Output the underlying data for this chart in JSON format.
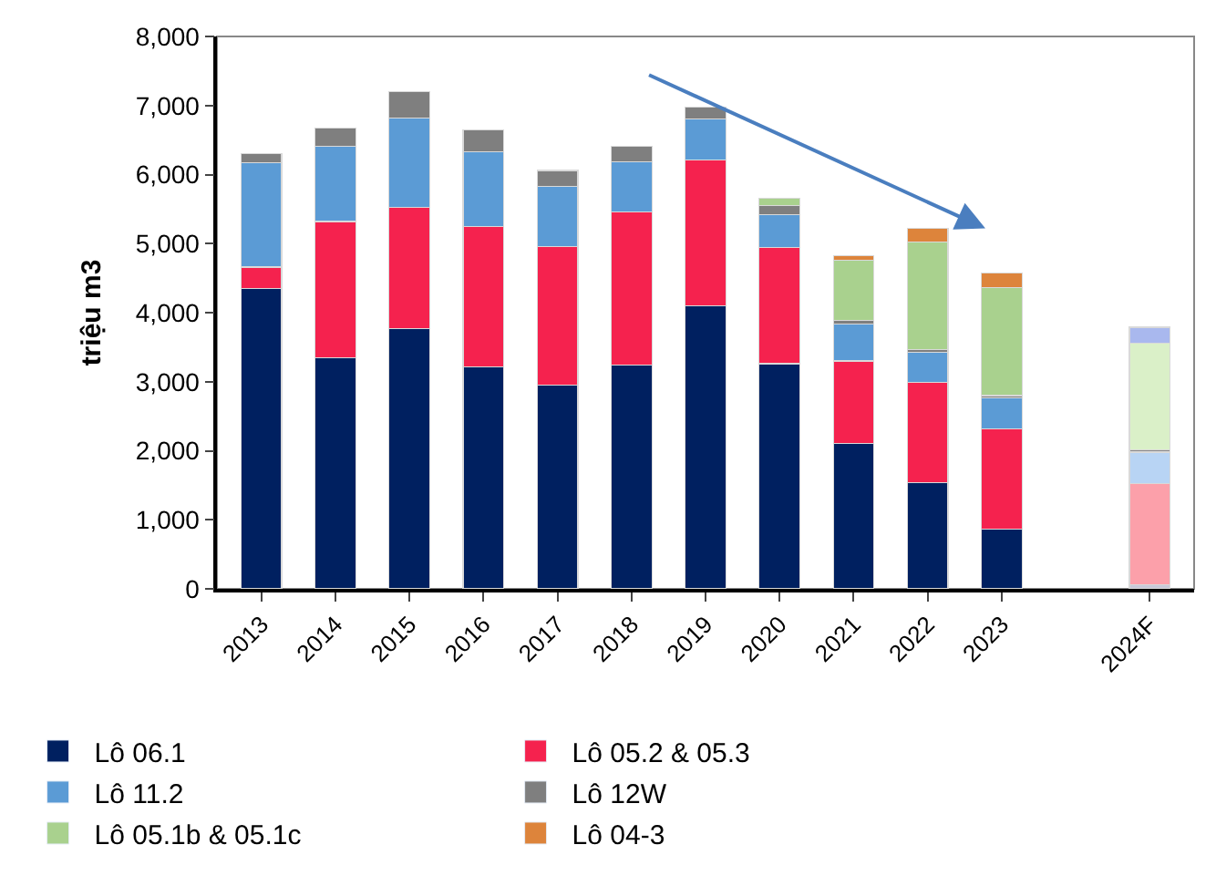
{
  "chart_data": {
    "type": "bar",
    "stacked": true,
    "ylabel": "triệu m3",
    "categories": [
      "2013",
      "2014",
      "2015",
      "2016",
      "2017",
      "2018",
      "2019",
      "2020",
      "2021",
      "2022",
      "2023",
      null,
      "2024F"
    ],
    "ylim": [
      0,
      8000
    ],
    "yticks": [
      {
        "value": 0,
        "label": "0"
      },
      {
        "value": 1000,
        "label": "1,000"
      },
      {
        "value": 2000,
        "label": "2,000"
      },
      {
        "value": 3000,
        "label": "3,000"
      },
      {
        "value": 4000,
        "label": "4,000"
      },
      {
        "value": 5000,
        "label": "5,000"
      },
      {
        "value": 6000,
        "label": "6,000"
      },
      {
        "value": 7000,
        "label": "7,000"
      },
      {
        "value": 8000,
        "label": "8,000"
      }
    ],
    "grid": false,
    "legend": "bottom",
    "series": [
      {
        "name": "Lô 06.1",
        "color": "#002060",
        "colors": [
          "#002060",
          "#002060",
          "#002060",
          "#002060",
          "#002060",
          "#002060",
          "#002060",
          "#002060",
          "#002060",
          "#002060",
          "#002060",
          "#002060",
          "#c8c8d8"
        ],
        "values": [
          4350,
          3350,
          3770,
          3210,
          2950,
          3240,
          4100,
          3260,
          2110,
          1540,
          870,
          null,
          60
        ]
      },
      {
        "name": "Lô 05.2 & 05.3",
        "color": "#f5224e",
        "colors": [
          "#f5224e",
          "#f5224e",
          "#f5224e",
          "#f5224e",
          "#f5224e",
          "#f5224e",
          "#f5224e",
          "#f5224e",
          "#f5224e",
          "#f5224e",
          "#f5224e",
          "#f5224e",
          "#fca0aa"
        ],
        "values": [
          310,
          1970,
          1760,
          2040,
          2010,
          2220,
          2110,
          1680,
          1190,
          1450,
          1450,
          null,
          1460
        ]
      },
      {
        "name": "Lô 11.2",
        "color": "#5b9bd5",
        "colors": [
          "#5b9bd5",
          "#5b9bd5",
          "#5b9bd5",
          "#5b9bd5",
          "#5b9bd5",
          "#5b9bd5",
          "#5b9bd5",
          "#5b9bd5",
          "#5b9bd5",
          "#5b9bd5",
          "#5b9bd5",
          "#5b9bd5",
          "#b8d4f4"
        ],
        "values": [
          1510,
          1090,
          1290,
          1080,
          870,
          720,
          600,
          480,
          530,
          440,
          450,
          null,
          460
        ]
      },
      {
        "name": "Lô 12W",
        "color": "#7f7f7f",
        "colors": [
          "#7f7f7f",
          "#7f7f7f",
          "#7f7f7f",
          "#7f7f7f",
          "#7f7f7f",
          "#7f7f7f",
          "#7f7f7f",
          "#7f7f7f",
          "#7f7f7f",
          "#7f7f7f",
          "#7f7f7f",
          "#7f7f7f",
          "#888888"
        ],
        "values": [
          130,
          260,
          380,
          320,
          230,
          230,
          170,
          130,
          60,
          40,
          30,
          null,
          30
        ]
      },
      {
        "name": "Lô 05.1b & 05.1c",
        "color": "#a9d18e",
        "colors": [
          "#a9d18e",
          "#a9d18e",
          "#a9d18e",
          "#a9d18e",
          "#a9d18e",
          "#a9d18e",
          "#a9d18e",
          "#a9d18e",
          "#a9d18e",
          "#a9d18e",
          "#a9d18e",
          "#a9d18e",
          "#daf0c8"
        ],
        "values": [
          null,
          null,
          null,
          null,
          null,
          null,
          null,
          110,
          870,
          1550,
          1560,
          null,
          1550
        ]
      },
      {
        "name": "Lô 04-3",
        "color": "#dd843b",
        "colors": [
          "#dd843b",
          "#dd843b",
          "#dd843b",
          "#dd843b",
          "#dd843b",
          "#dd843b",
          "#dd843b",
          "#dd843b",
          "#dd843b",
          "#dd843b",
          "#dd843b",
          "#dd843b",
          "#a9b8ee"
        ],
        "values": [
          null,
          null,
          null,
          null,
          null,
          null,
          null,
          null,
          60,
          200,
          210,
          null,
          230
        ]
      }
    ]
  }
}
